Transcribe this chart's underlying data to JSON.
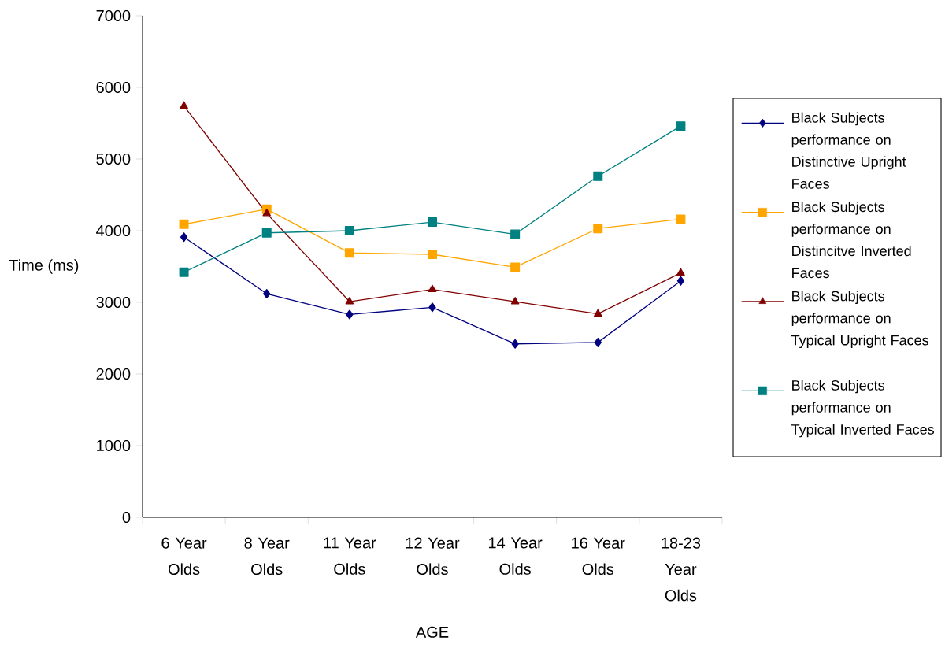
{
  "chart_data": {
    "type": "line",
    "xlabel": "AGE",
    "ylabel": "Time (ms)",
    "categories": [
      "6 Year Olds",
      "8 Year Olds",
      "11 Year Olds",
      "12 Year Olds",
      "14 Year Olds",
      "16 Year Olds",
      "18-23 Year Olds"
    ],
    "series": [
      {
        "name": "Black Subjects performance on Distinctive Upright Faces",
        "color": "#000080",
        "marker": "diamond",
        "values": [
          3910,
          3120,
          2830,
          2930,
          2420,
          2440,
          3300
        ]
      },
      {
        "name": "Black Subjects performance on Distincitve Inverted Faces",
        "color": "#ffa500",
        "marker": "square",
        "values": [
          4090,
          4300,
          3690,
          3670,
          3490,
          4030,
          4160
        ]
      },
      {
        "name": "Black Subjects performance on Typical Upright Faces",
        "color": "#800000",
        "marker": "triangle",
        "values": [
          5740,
          4240,
          3010,
          3180,
          3010,
          2840,
          3410
        ]
      },
      {
        "name": "Black Subjects performance on Typical Inverted Faces",
        "color": "#008080",
        "marker": "square",
        "values": [
          3420,
          3970,
          4000,
          4120,
          3950,
          4760,
          5460
        ]
      }
    ],
    "ylim": [
      0,
      7000
    ],
    "yticks": [
      0,
      1000,
      2000,
      3000,
      4000,
      5000,
      6000,
      7000
    ],
    "grid": false,
    "legend": "right",
    "line_style": "solid"
  }
}
